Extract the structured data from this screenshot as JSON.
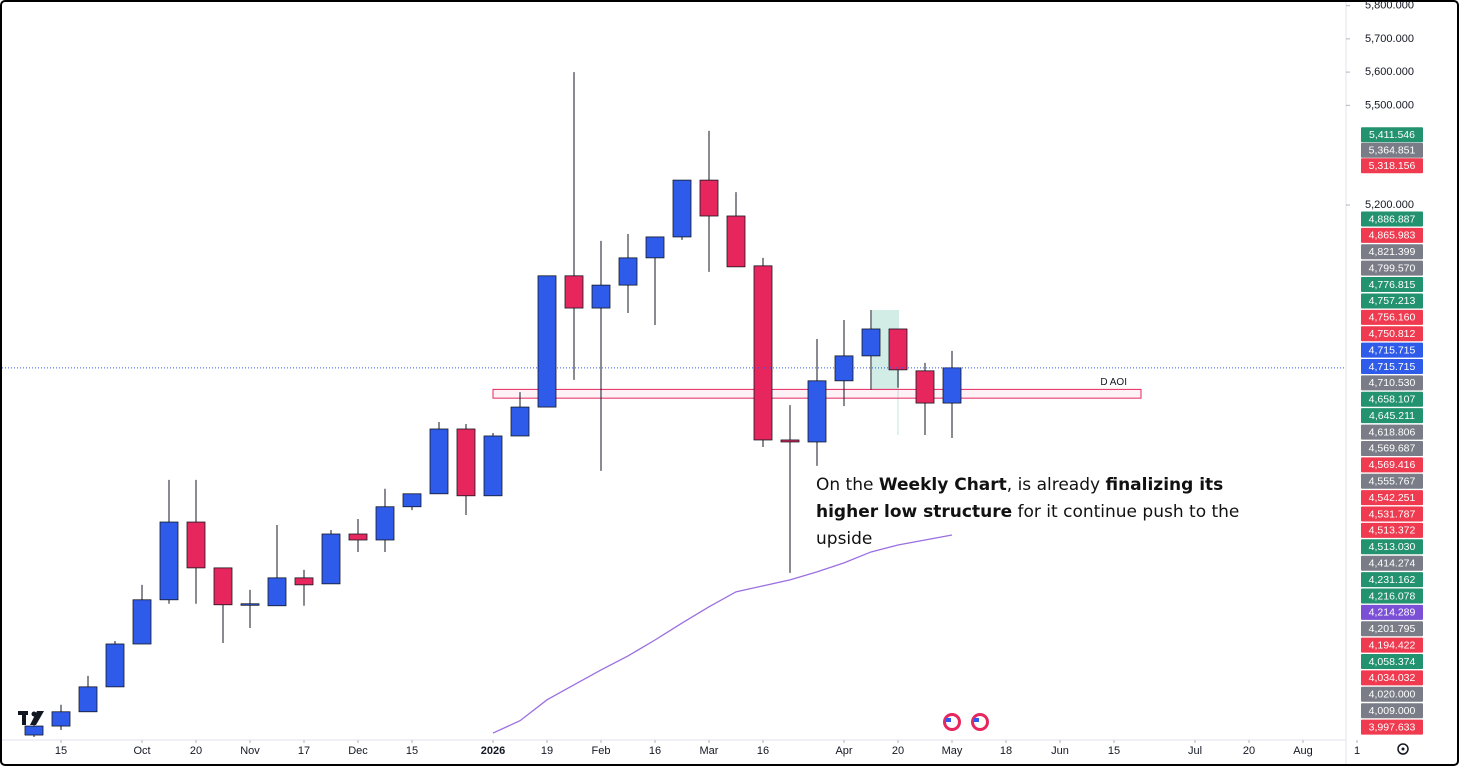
{
  "chart_data": {
    "type": "candlestick",
    "xlim": [
      -1,
      50
    ],
    "ylim": [
      3575,
      5805
    ],
    "xticks": [
      {
        "value": 1,
        "label": "15"
      },
      {
        "value": 4,
        "label": "Oct"
      },
      {
        "value": 6,
        "label": "20"
      },
      {
        "value": 8,
        "label": "Nov"
      },
      {
        "value": 10,
        "label": "17"
      },
      {
        "value": 12,
        "label": "Dec"
      },
      {
        "value": 14,
        "label": "15"
      },
      {
        "value": 17,
        "label": "2026"
      },
      {
        "value": 19,
        "label": "19"
      },
      {
        "value": 21,
        "label": "Feb"
      },
      {
        "value": 23,
        "label": "16"
      },
      {
        "value": 25,
        "label": "Mar"
      },
      {
        "value": 27,
        "label": "16"
      },
      {
        "value": 30,
        "label": "Apr"
      },
      {
        "value": 32,
        "label": "20"
      },
      {
        "value": 34,
        "label": "May"
      },
      {
        "value": 36,
        "label": "18"
      },
      {
        "value": 38,
        "label": "Jun"
      },
      {
        "value": 40,
        "label": "15"
      },
      {
        "value": 43,
        "label": "Jul"
      },
      {
        "value": 45,
        "label": "20"
      },
      {
        "value": 47,
        "label": "Aug"
      },
      {
        "value": 49,
        "label": "1"
      }
    ],
    "yticks": [
      {
        "value": 5800,
        "label": "5,800.000"
      },
      {
        "value": 5700,
        "label": "5,700.000"
      },
      {
        "value": 5600,
        "label": "5,600.000"
      },
      {
        "value": 5500,
        "label": "5,500.000"
      },
      {
        "value": 5200,
        "label": "5,200.000"
      }
    ],
    "up_color": "#2f5bea",
    "down_color": "#e8265e",
    "candles": {
      "x": [
        0,
        1,
        2,
        3,
        4,
        5,
        6,
        7,
        8,
        9,
        10,
        11,
        12,
        13,
        14,
        15,
        16,
        17,
        18,
        19,
        20,
        21,
        22,
        23,
        24,
        25,
        26,
        27,
        28,
        29,
        30,
        31,
        32,
        33,
        34
      ],
      "open": [
        3605,
        3632,
        3675,
        3750,
        3879,
        4012,
        4246,
        4108,
        3997,
        3994,
        4078,
        4060,
        4210,
        4192,
        4292,
        4331,
        4526,
        4325,
        4505,
        4592,
        4987,
        4890,
        4959,
        5041,
        5104,
        5275,
        5167,
        5017,
        4493,
        4487,
        4671,
        4746,
        4827,
        4701,
        4604
      ],
      "high": [
        3650,
        3696,
        3783,
        3888,
        4057,
        4373,
        4373,
        4108,
        4042,
        4237,
        4102,
        4222,
        4255,
        4346,
        4331,
        4547,
        4541,
        4514,
        4637,
        4987,
        5600,
        5092,
        5113,
        5104,
        5275,
        5423,
        5239,
        5041,
        4598,
        4797,
        4854,
        4884,
        4827,
        4725,
        4761
      ],
      "low": [
        3599,
        3620,
        3675,
        3750,
        3879,
        4000,
        4000,
        3882,
        3927,
        3994,
        3994,
        4060,
        4156,
        4156,
        4282,
        4331,
        4267,
        4325,
        4505,
        4592,
        4674,
        4400,
        4875,
        4839,
        5095,
        4999,
        5014,
        4472,
        4093,
        4415,
        4595,
        4644,
        4650,
        4508,
        4499
      ],
      "close": [
        3632,
        3675,
        3750,
        3879,
        4012,
        4246,
        4108,
        3997,
        4000,
        4078,
        4057,
        4210,
        4192,
        4292,
        4331,
        4526,
        4325,
        4505,
        4592,
        4987,
        4890,
        4959,
        5041,
        5104,
        5275,
        5167,
        5014,
        4493,
        4487,
        4671,
        4746,
        4827,
        4704,
        4604,
        4710
      ]
    },
    "ma": {
      "color": "#9b6fe0",
      "x": [
        17,
        18,
        19,
        20,
        21,
        22,
        23,
        24,
        25,
        26,
        27,
        28,
        29,
        30,
        31,
        32,
        33,
        34
      ],
      "values": [
        3611,
        3648,
        3711,
        3756,
        3801,
        3843,
        3891,
        3942,
        3991,
        4036,
        4054,
        4072,
        4096,
        4123,
        4156,
        4177,
        4192,
        4207
      ]
    },
    "zone": {
      "label": "D AOI",
      "x": [
        17,
        41
      ],
      "y": [
        4618.806,
        4645.211
      ],
      "color": "#e8265e"
    },
    "price_labels": [
      {
        "value": 5411.546,
        "label": "5,411.546",
        "color": "#22926f"
      },
      {
        "value": 5364.851,
        "label": "5,364.851",
        "color": "#7a7d87"
      },
      {
        "value": 5318.156,
        "label": "5,318.156",
        "color": "#ef3a4f"
      },
      {
        "value": 4886.887,
        "label": "4,886.887",
        "color": "#22926f"
      },
      {
        "value": 4865.983,
        "label": "4,865.983",
        "color": "#ef3a4f"
      },
      {
        "value": 4821.399,
        "label": "4,821.399",
        "color": "#7a7d87"
      },
      {
        "value": 4799.57,
        "label": "4,799.570",
        "color": "#7a7d87"
      },
      {
        "value": 4776.815,
        "label": "4,776.815",
        "color": "#22926f"
      },
      {
        "value": 4757.213,
        "label": "4,757.213",
        "color": "#22926f"
      },
      {
        "value": 4756.16,
        "label": "4,756.160",
        "color": "#ef3a4f"
      },
      {
        "value": 4750.812,
        "label": "4,750.812",
        "color": "#ef3a4f"
      },
      {
        "value": 4715.715,
        "label": "4,715.715",
        "color": "#2f5bea"
      },
      {
        "value": 4715.715,
        "label": "4,715.715",
        "color": "#2f5bea"
      },
      {
        "value": 4710.53,
        "label": "4,710.530",
        "color": "#7a7d87"
      },
      {
        "value": 4658.107,
        "label": "4,658.107",
        "color": "#22926f"
      },
      {
        "value": 4645.211,
        "label": "4,645.211",
        "color": "#22926f"
      },
      {
        "value": 4618.806,
        "label": "4,618.806",
        "color": "#7a7d87"
      },
      {
        "value": 4569.687,
        "label": "4,569.687",
        "color": "#7a7d87"
      },
      {
        "value": 4569.416,
        "label": "4,569.416",
        "color": "#ef3a4f"
      },
      {
        "value": 4555.767,
        "label": "4,555.767",
        "color": "#7a7d87"
      },
      {
        "value": 4542.251,
        "label": "4,542.251",
        "color": "#ef3a4f"
      },
      {
        "value": 4531.787,
        "label": "4,531.787",
        "color": "#ef3a4f"
      },
      {
        "value": 4513.372,
        "label": "4,513.372",
        "color": "#ef3a4f"
      },
      {
        "value": 4513.03,
        "label": "4,513.030",
        "color": "#22926f"
      },
      {
        "value": 4414.274,
        "label": "4,414.274",
        "color": "#7a7d87"
      },
      {
        "value": 4231.162,
        "label": "4,231.162",
        "color": "#22926f"
      },
      {
        "value": 4216.078,
        "label": "4,216.078",
        "color": "#22926f"
      },
      {
        "value": 4214.289,
        "label": "4,214.289",
        "color": "#7b4fd6"
      },
      {
        "value": 4201.795,
        "label": "4,201.795",
        "color": "#7a7d87"
      },
      {
        "value": 4194.422,
        "label": "4,194.422",
        "color": "#ef3a4f"
      },
      {
        "value": 4058.374,
        "label": "4,058.374",
        "color": "#22926f"
      },
      {
        "value": 4034.032,
        "label": "4,034.032",
        "color": "#ef3a4f"
      },
      {
        "value": 4020,
        "label": "4,020.000",
        "color": "#7a7d87"
      },
      {
        "value": 4009,
        "label": "4,009.000",
        "color": "#7a7d87"
      },
      {
        "value": 3997.633,
        "label": "3,997.633",
        "color": "#ef3a4f"
      }
    ],
    "annotation": [
      [
        {
          "text": "On the "
        },
        {
          "text": "Weekly Chart",
          "bold": true
        },
        {
          "text": ", is already "
        },
        {
          "text": "finalizing its",
          "bold": true
        }
      ],
      [
        {
          "text": "higher low structure",
          "bold": true
        },
        {
          "text": " for it continue push to the"
        }
      ],
      [
        {
          "text": "upside"
        }
      ]
    ]
  }
}
